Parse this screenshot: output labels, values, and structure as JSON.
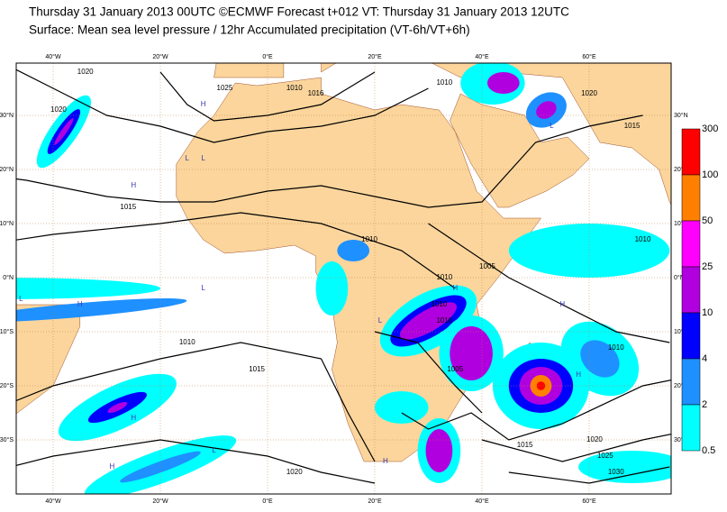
{
  "header": {
    "title": "Thursday 31 January 2013 00UTC ©ECMWF Forecast t+012 VT: Thursday 31 January 2013 12UTC",
    "subtitle": "Surface: Mean sea level pressure / 12hr Accumulated precipitation (VT-6h/VT+6h)"
  },
  "map": {
    "longitude_labels": [
      "40°W",
      "20°W",
      "0°E",
      "20°E",
      "40°E",
      "60°E"
    ],
    "latitude_labels": [
      "30°N",
      "20°N",
      "10°N",
      "0°N",
      "10°S",
      "20°S",
      "30°S"
    ],
    "isobar_labels": [
      "1020",
      "1020",
      "1025",
      "1010",
      "1016",
      "1010",
      "1020",
      "1015",
      "1015",
      "1010",
      "1010",
      "1005",
      "1010",
      "1010",
      "1010",
      "1010",
      "1005",
      "1010",
      "1015",
      "1015",
      "1020",
      "1025",
      "1030",
      "1020"
    ],
    "pressure_centers": [
      "H",
      "L",
      "H",
      "L",
      "L",
      "H",
      "L",
      "H",
      "H",
      "L",
      "H",
      "H",
      "L",
      "H",
      "H",
      "L"
    ]
  },
  "colorbar": {
    "labels": [
      "300",
      "100",
      "50",
      "25",
      "10",
      "4",
      "2",
      "0.5"
    ],
    "colors": [
      "#ff0000",
      "#ff8000",
      "#ff00ff",
      "#b000e0",
      "#0000ff",
      "#1e90ff",
      "#00ffff"
    ]
  }
}
